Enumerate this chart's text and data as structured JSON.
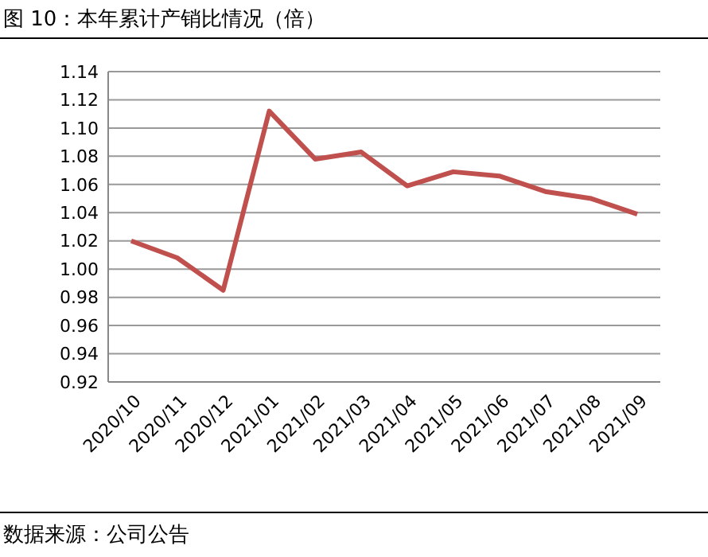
{
  "chart_data": {
    "type": "line",
    "title": "图 10：本年累计产销比情况（倍）",
    "categories": [
      "2020/10",
      "2020/11",
      "2020/12",
      "2021/01",
      "2021/02",
      "2021/03",
      "2021/04",
      "2021/05",
      "2021/06",
      "2021/07",
      "2021/08",
      "2021/09"
    ],
    "series": [
      {
        "color": "#c0504d",
        "values": [
          1.02,
          1.008,
          0.985,
          1.112,
          1.078,
          1.083,
          1.059,
          1.069,
          1.066,
          1.055,
          1.05,
          1.039
        ]
      }
    ],
    "ylim": [
      0.92,
      1.14
    ],
    "yticks": [
      0.92,
      0.94,
      0.96,
      0.98,
      {
        "value": 1,
        "label": "1.00"
      },
      1.02,
      1.04,
      1.06,
      1.08,
      {
        "value": 1.1,
        "label": "1.10"
      },
      1.12,
      1.14
    ],
    "grid": "y",
    "marker": "none",
    "line_style": "solid",
    "annotations": [
      "数据来源：公司公告"
    ]
  }
}
